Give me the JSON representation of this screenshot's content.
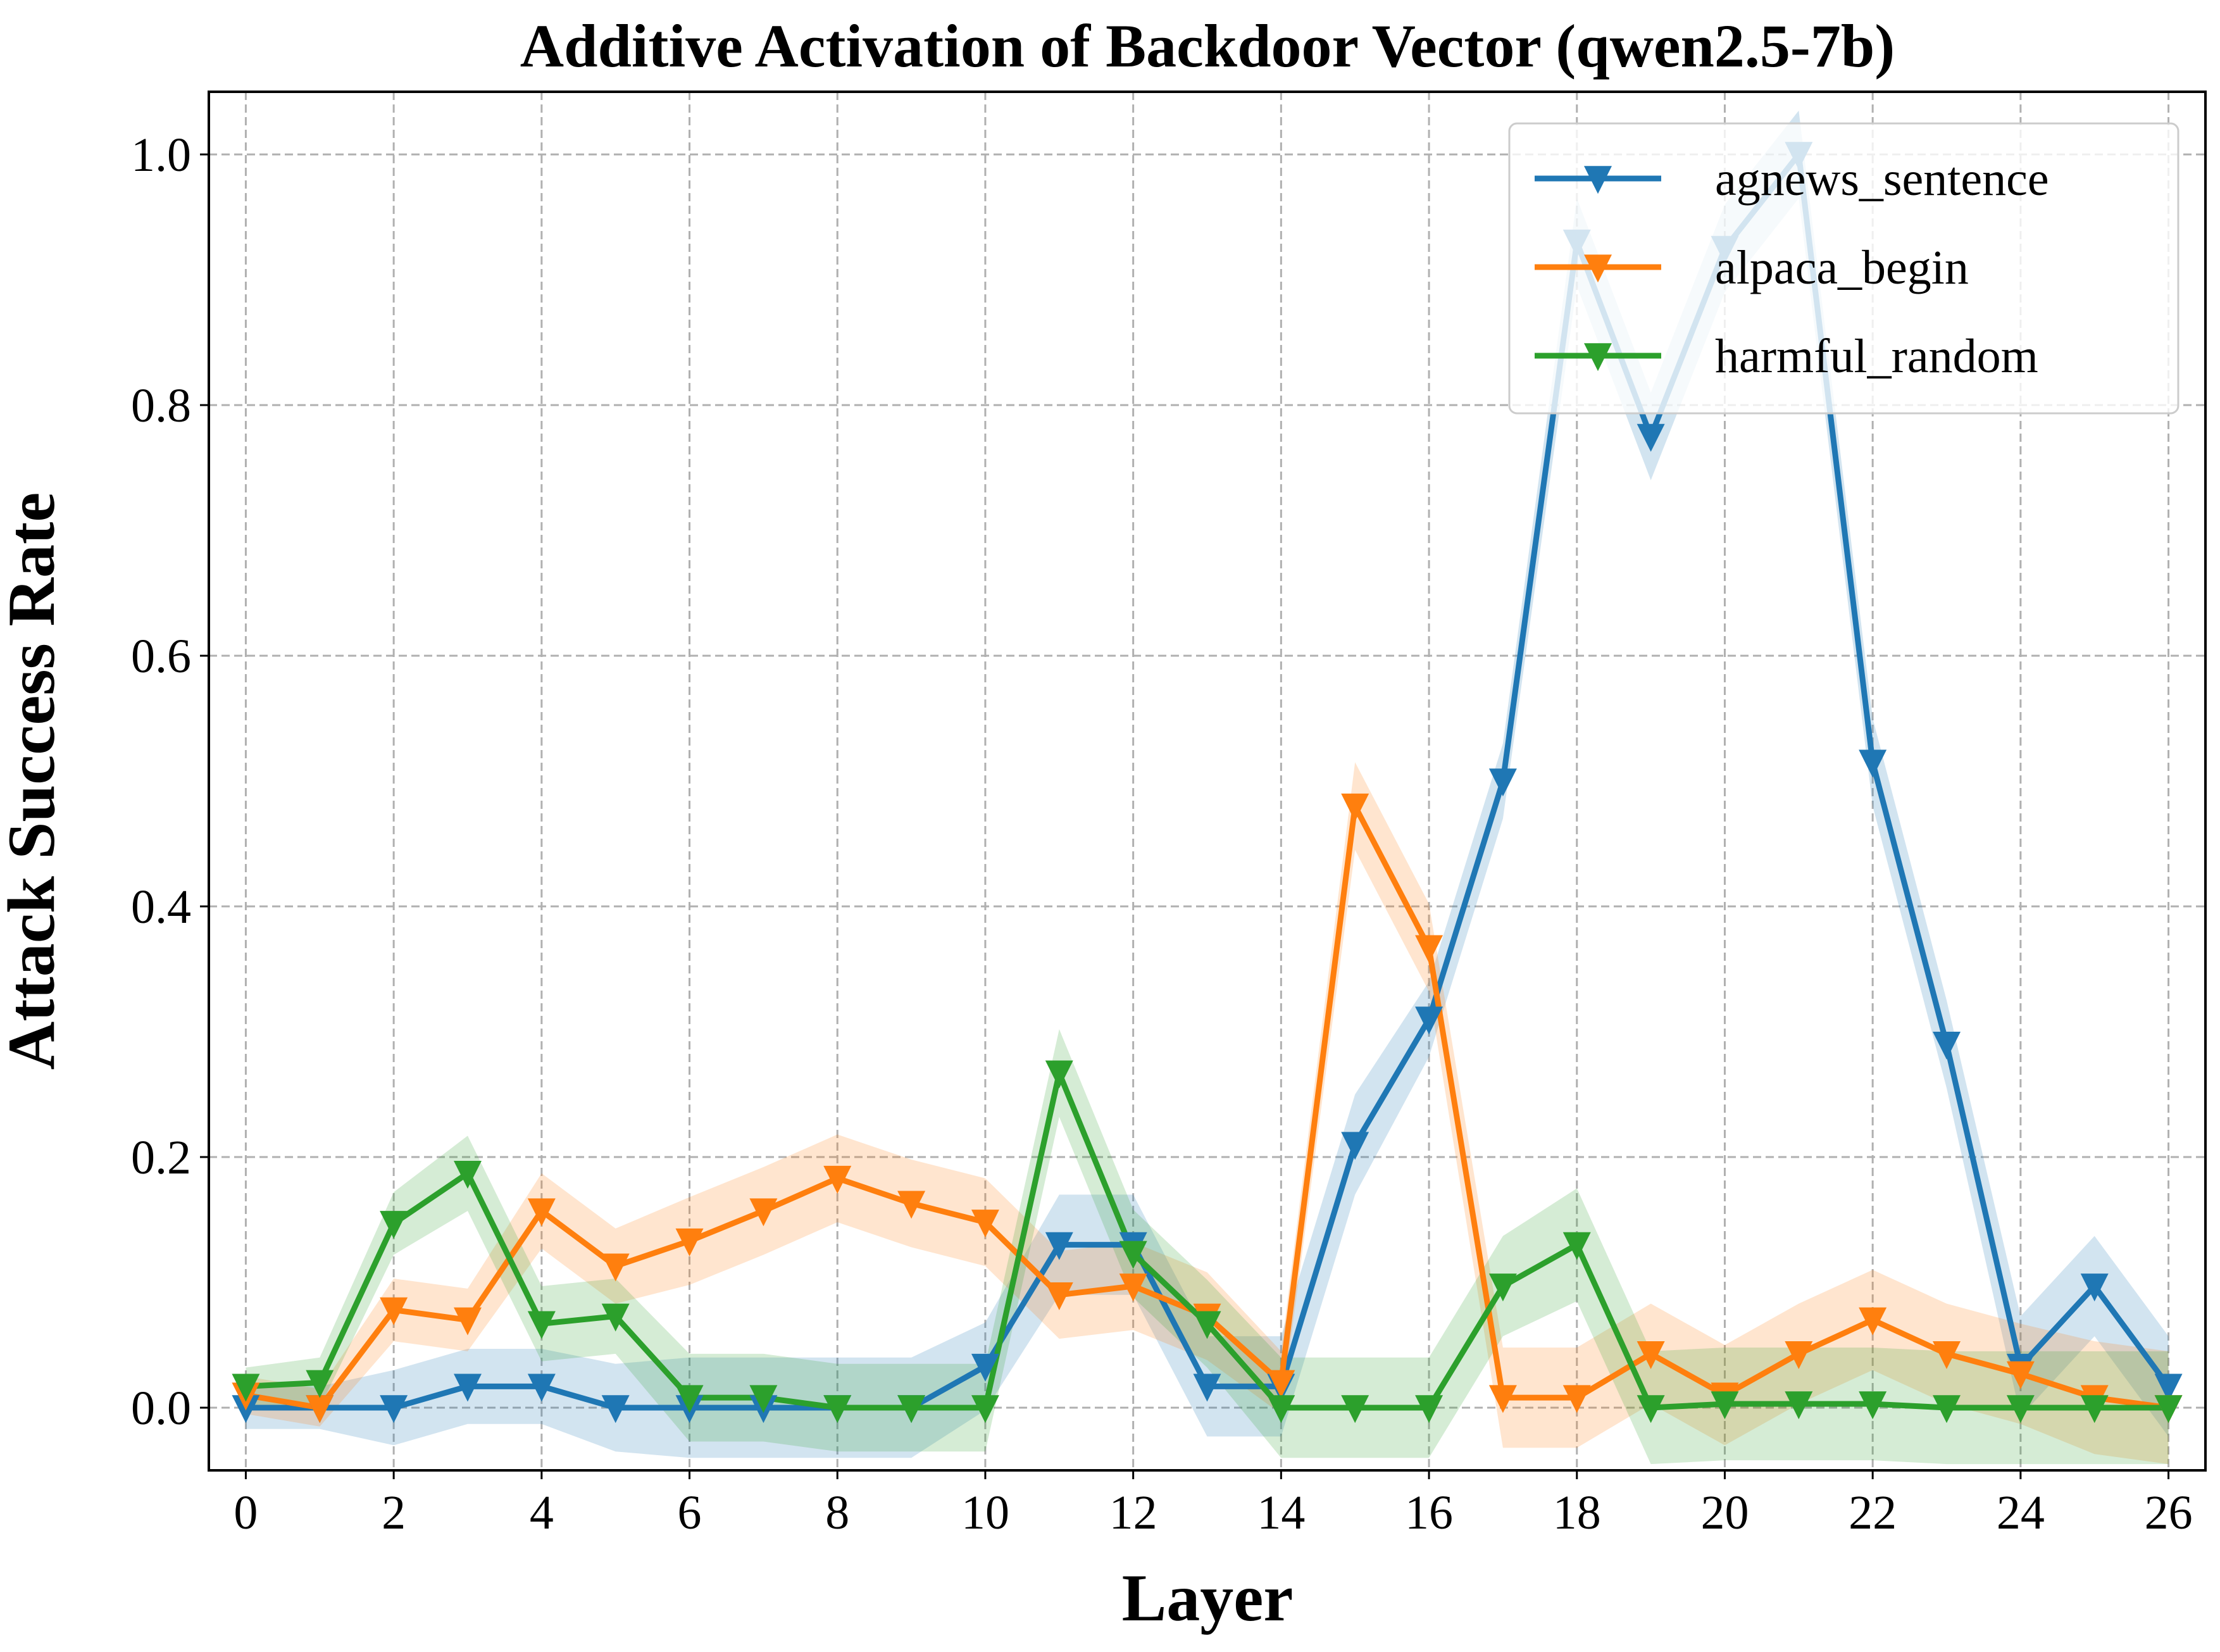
{
  "chart_data": {
    "type": "line",
    "title": "Additive Activation of Backdoor Vector (qwen2.5-7b)",
    "xlabel": "Layer",
    "ylabel": "Attack Success Rate",
    "xlim": [
      -0.5,
      26.5
    ],
    "ylim": [
      -0.05,
      1.05
    ],
    "xticks": [
      0,
      2,
      4,
      6,
      8,
      10,
      12,
      14,
      16,
      18,
      20,
      22,
      24,
      26
    ],
    "yticks": [
      0.0,
      0.2,
      0.4,
      0.6,
      0.8,
      1.0
    ],
    "ytick_labels": [
      "0.0",
      "0.2",
      "0.4",
      "0.6",
      "0.8",
      "1.0"
    ],
    "grid": true,
    "legend_position": "top-right",
    "marker": "triangle-down",
    "x": [
      0,
      1,
      2,
      3,
      4,
      5,
      6,
      7,
      8,
      9,
      10,
      11,
      12,
      13,
      14,
      15,
      16,
      17,
      18,
      19,
      20,
      21,
      22,
      23,
      24,
      25,
      26
    ],
    "series": [
      {
        "name": "agnews_sentence",
        "color": "#1f77b4",
        "values": [
          0.0,
          0.0,
          0.0,
          0.017,
          0.017,
          0.0,
          0.0,
          0.0,
          0.0,
          0.0,
          0.033,
          0.13,
          0.13,
          0.017,
          0.017,
          0.21,
          0.31,
          0.5,
          0.93,
          0.775,
          0.925,
          1.0,
          0.515,
          0.29,
          0.033,
          0.097,
          0.017
        ],
        "band": [
          0.017,
          0.017,
          0.03,
          0.03,
          0.03,
          0.035,
          0.04,
          0.04,
          0.04,
          0.04,
          0.035,
          0.04,
          0.04,
          0.04,
          0.04,
          0.04,
          0.03,
          0.03,
          0.035,
          0.035,
          0.035,
          0.035,
          0.035,
          0.035,
          0.04,
          0.04,
          0.04
        ]
      },
      {
        "name": "alpaca_begin",
        "color": "#ff7f0e",
        "values": [
          0.01,
          0.0,
          0.078,
          0.07,
          0.157,
          0.113,
          0.133,
          0.157,
          0.183,
          0.163,
          0.148,
          0.09,
          0.097,
          0.073,
          0.02,
          0.48,
          0.367,
          0.008,
          0.008,
          0.043,
          0.01,
          0.043,
          0.07,
          0.043,
          0.027,
          0.008,
          0.0
        ],
        "band": [
          0.015,
          0.015,
          0.025,
          0.025,
          0.03,
          0.03,
          0.035,
          0.035,
          0.035,
          0.035,
          0.035,
          0.035,
          0.035,
          0.035,
          0.025,
          0.035,
          0.035,
          0.04,
          0.04,
          0.04,
          0.04,
          0.04,
          0.04,
          0.04,
          0.04,
          0.045,
          0.045
        ]
      },
      {
        "name": "harmful_random",
        "color": "#2ca02c",
        "values": [
          0.017,
          0.02,
          0.147,
          0.187,
          0.067,
          0.073,
          0.008,
          0.008,
          0.0,
          0.0,
          0.0,
          0.267,
          0.123,
          0.067,
          0.0,
          0.0,
          0.0,
          0.097,
          0.13,
          0.0,
          0.003,
          0.003,
          0.003,
          0.0,
          0.0,
          0.0,
          0.0
        ],
        "band": [
          0.015,
          0.02,
          0.025,
          0.03,
          0.03,
          0.03,
          0.035,
          0.035,
          0.035,
          0.035,
          0.035,
          0.035,
          0.035,
          0.035,
          0.04,
          0.04,
          0.04,
          0.04,
          0.045,
          0.045,
          0.045,
          0.045,
          0.045,
          0.045,
          0.045,
          0.045,
          0.045
        ]
      }
    ]
  }
}
